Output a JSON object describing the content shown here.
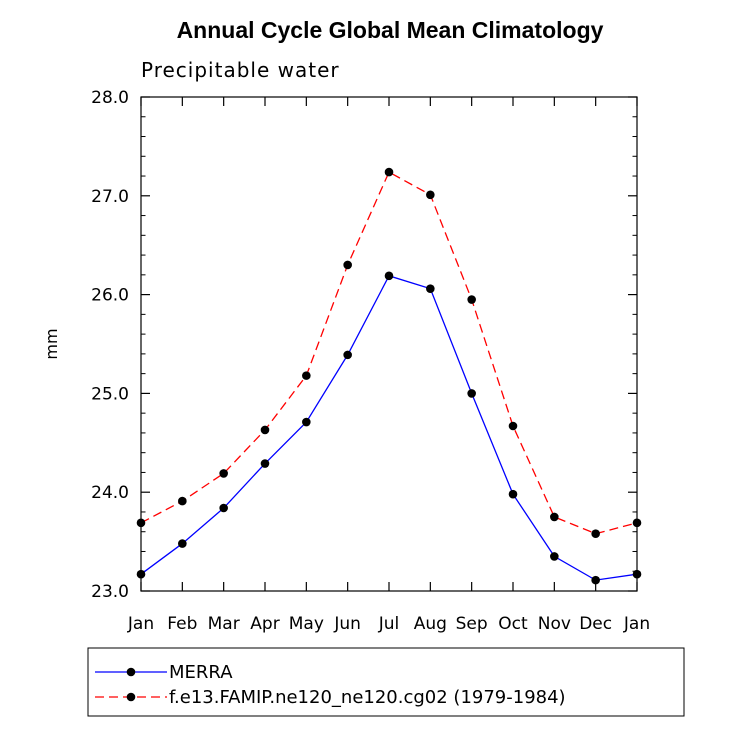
{
  "chart_data": {
    "type": "line",
    "title": "Annual Cycle Global Mean Climatology",
    "subtitle": "Precipitable water",
    "xlabel": "",
    "ylabel": "mm",
    "categories": [
      "Jan",
      "Feb",
      "Mar",
      "Apr",
      "May",
      "Jun",
      "Jul",
      "Aug",
      "Sep",
      "Oct",
      "Nov",
      "Dec",
      "Jan"
    ],
    "ylim": [
      23.0,
      28.0
    ],
    "yticks": [
      "23.0",
      "24.0",
      "25.0",
      "26.0",
      "27.0",
      "28.0"
    ],
    "series": [
      {
        "name": "MERRA",
        "color": "#0000ff",
        "dash": "solid",
        "values": [
          23.17,
          23.48,
          23.84,
          24.29,
          24.71,
          25.39,
          26.19,
          26.06,
          25.0,
          23.98,
          23.35,
          23.11,
          23.17
        ]
      },
      {
        "name": "f.e13.FAMIP.ne120_ne120.cg02 (1979-1984)",
        "color": "#ff0000",
        "dash": "dashed",
        "values": [
          23.69,
          23.91,
          24.19,
          24.63,
          25.18,
          26.3,
          27.24,
          27.01,
          25.95,
          24.67,
          23.75,
          23.58,
          23.69
        ]
      }
    ],
    "legend_position": "bottom",
    "grid": false
  }
}
